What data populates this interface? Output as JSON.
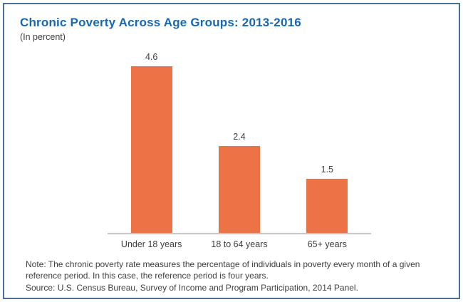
{
  "chart": {
    "title": "Chronic Poverty Across Age Groups: 2013-2016",
    "subtitle": "(In percent)"
  },
  "chart_data": {
    "type": "bar",
    "categories": [
      "Under 18 years",
      "18 to 64 years",
      "65+ years"
    ],
    "values": [
      4.6,
      2.4,
      1.5
    ],
    "title": "Chronic Poverty Across Age Groups: 2013-2016",
    "subtitle": "(In percent)",
    "xlabel": "",
    "ylabel": "",
    "ylim": [
      0,
      5
    ],
    "grid": false,
    "legend": false,
    "data_labels": true,
    "bar_color": "#ed7245",
    "axis_line_color": "#c6c6c6"
  },
  "notes": {
    "note": "Note: The chronic poverty rate measures the percentage of individuals in poverty every month of a given reference period. In this case, the reference period is four years.",
    "source": "Source: U.S. Census Bureau, Survey of Income and Program Participation, 2014 Panel."
  },
  "colors": {
    "title_blue": "#1668b2",
    "bar_orange": "#ed7245",
    "text_dark": "#3c3c3c",
    "frame_border": "#4e6f94"
  }
}
